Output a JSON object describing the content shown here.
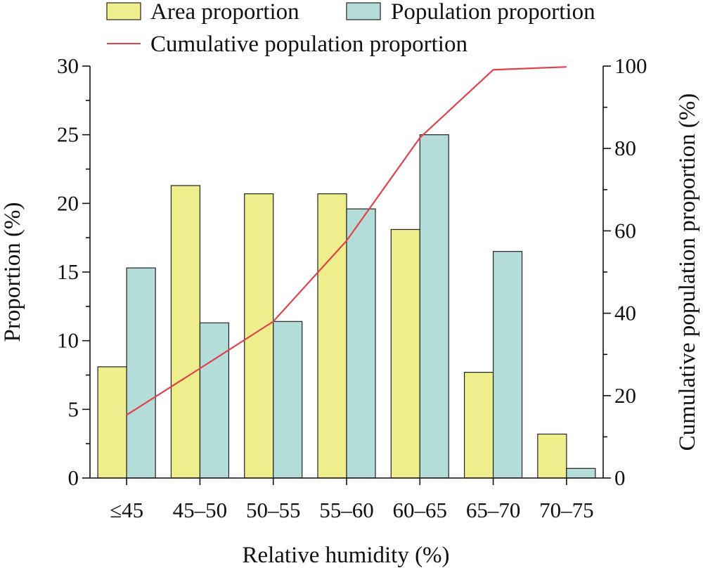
{
  "chart_data": {
    "type": "bar",
    "xlabel": "Relative humidity (%)",
    "ylabel": "Proportion (%)",
    "y2label": "Cumulative population proportion (%)",
    "categories": [
      "≤45",
      "45–50",
      "50–55",
      "55–60",
      "60–65",
      "65–70",
      "70–75"
    ],
    "ylim": [
      0,
      30
    ],
    "y2lim": [
      0,
      100
    ],
    "yticks": [
      0,
      5,
      10,
      15,
      20,
      25,
      30
    ],
    "y2ticks": [
      0,
      20,
      40,
      60,
      80,
      100
    ],
    "grid": false,
    "legend_position": "top",
    "series": [
      {
        "name": "Area proportion",
        "kind": "bar",
        "axis": "left",
        "color": "#eeee8c",
        "values": [
          8.1,
          21.3,
          20.7,
          20.7,
          18.1,
          7.7,
          3.2
        ]
      },
      {
        "name": "Population proportion",
        "kind": "bar",
        "axis": "left",
        "color": "#b4dcd9",
        "values": [
          15.3,
          11.3,
          11.4,
          19.6,
          25.0,
          16.5,
          0.7
        ]
      },
      {
        "name": "Cumulative population proportion",
        "kind": "line",
        "axis": "right",
        "color": "#e0414a",
        "values": [
          15.3,
          26.6,
          38.0,
          57.6,
          82.6,
          99.1,
          99.8
        ]
      }
    ]
  }
}
